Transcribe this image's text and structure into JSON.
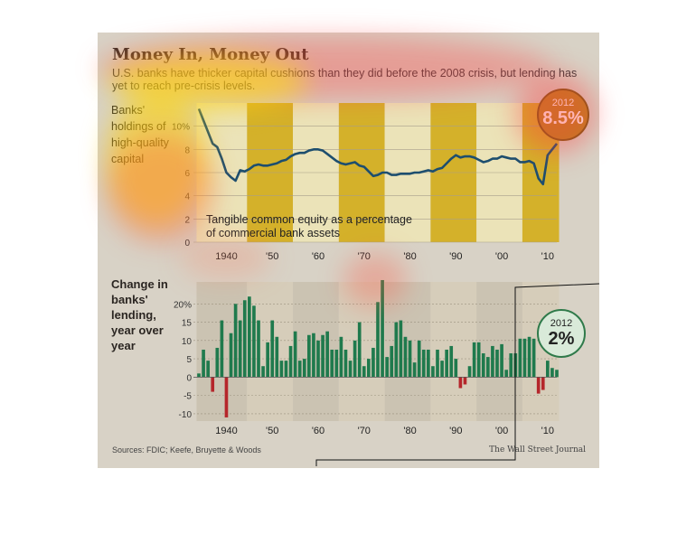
{
  "header": {
    "title": "Money In, Money Out",
    "subtitle": "U.S. banks have thicker capital cushions than they did before the 2008 crisis, but lending has yet to reach pre-crisis levels."
  },
  "top_chart": {
    "side_label": "Banks' holdings of high-quality capital",
    "note_line1": "Tangible common equity as a percentage",
    "note_line2": "of commercial bank assets",
    "callout_year": "2012",
    "callout_value": "8.5%"
  },
  "bottom_chart": {
    "side_label": "Change in banks' lending, year over year",
    "callout_year": "2012",
    "callout_value": "2%"
  },
  "x_ticks": [
    "1940",
    "'50",
    "'60",
    "'70",
    "'80",
    "'90",
    "'00",
    "'10"
  ],
  "footer": {
    "source": "Sources: FDIC; Keefe, Bruyette & Woods",
    "credit": "The Wall Street Journal"
  },
  "colors": {
    "panel_bg": "#d8d2c6",
    "band_gold": "#d4b12a",
    "band_light": "#ebe3b8",
    "line": "#1d4e6e",
    "bar_positive": "#1f7a4d",
    "bar_negative": "#b5262b",
    "callout_gold": "#b8861f",
    "callout_green": "#2f7a4a"
  },
  "chart_data": [
    {
      "type": "line",
      "x": [
        1934,
        1935,
        1936,
        1937,
        1938,
        1939,
        1940,
        1941,
        1942,
        1943,
        1944,
        1945,
        1946,
        1947,
        1948,
        1949,
        1950,
        1951,
        1952,
        1953,
        1954,
        1955,
        1956,
        1957,
        1958,
        1959,
        1960,
        1961,
        1962,
        1963,
        1964,
        1965,
        1966,
        1967,
        1968,
        1969,
        1970,
        1971,
        1972,
        1973,
        1974,
        1975,
        1976,
        1977,
        1978,
        1979,
        1980,
        1981,
        1982,
        1983,
        1984,
        1985,
        1986,
        1987,
        1988,
        1989,
        1990,
        1991,
        1992,
        1993,
        1994,
        1995,
        1996,
        1997,
        1998,
        1999,
        2000,
        2001,
        2002,
        2003,
        2004,
        2005,
        2006,
        2007,
        2008,
        2009,
        2010,
        2011,
        2012
      ],
      "series": [
        {
          "values": [
            11.5,
            10.5,
            9.5,
            8.5,
            8.2,
            7.2,
            6.0,
            5.6,
            5.3,
            6.2,
            6.1,
            6.3,
            6.6,
            6.7,
            6.6,
            6.6,
            6.7,
            6.8,
            7.0,
            7.1,
            7.4,
            7.6,
            7.7,
            7.7,
            7.9,
            8.0,
            8.0,
            7.9,
            7.6,
            7.3,
            7.0,
            6.8,
            6.7,
            6.8,
            6.9,
            6.6,
            6.5,
            6.1,
            5.7,
            5.8,
            6.0,
            6.0,
            5.8,
            5.8,
            5.9,
            5.9,
            5.9,
            6.0,
            6.0,
            6.1,
            6.2,
            6.1,
            6.3,
            6.4,
            6.8,
            7.2,
            7.5,
            7.3,
            7.4,
            7.4,
            7.3,
            7.1,
            6.9,
            7.0,
            7.2,
            7.2,
            7.4,
            7.3,
            7.2,
            7.2,
            6.9,
            6.9,
            7.0,
            6.8,
            5.5,
            5.0,
            7.5,
            8.0,
            8.5
          ]
        }
      ],
      "ylim": [
        0,
        12
      ],
      "y_ticks": [
        "0",
        "2",
        "4",
        "6",
        "8",
        "10%"
      ]
    },
    {
      "type": "bar",
      "x": [
        1934,
        1935,
        1936,
        1937,
        1938,
        1939,
        1940,
        1941,
        1942,
        1943,
        1944,
        1945,
        1946,
        1947,
        1948,
        1949,
        1950,
        1951,
        1952,
        1953,
        1954,
        1955,
        1956,
        1957,
        1958,
        1959,
        1960,
        1961,
        1962,
        1963,
        1964,
        1965,
        1966,
        1967,
        1968,
        1969,
        1970,
        1971,
        1972,
        1973,
        1974,
        1975,
        1976,
        1977,
        1978,
        1979,
        1980,
        1981,
        1982,
        1983,
        1984,
        1985,
        1986,
        1987,
        1988,
        1989,
        1990,
        1991,
        1992,
        1993,
        1994,
        1995,
        1996,
        1997,
        1998,
        1999,
        2000,
        2001,
        2002,
        2003,
        2004,
        2005,
        2006,
        2007,
        2008,
        2009,
        2010,
        2011,
        2012
      ],
      "values": [
        1,
        7.5,
        4.5,
        -4,
        8,
        15.5,
        -11,
        12,
        20,
        15.5,
        21,
        22,
        19.5,
        15.5,
        3,
        9.5,
        15.5,
        11,
        4.5,
        4.5,
        8.5,
        12.5,
        4.5,
        5,
        11.5,
        12,
        10,
        11.5,
        12.5,
        7.5,
        7.5,
        11,
        7.5,
        4.5,
        10,
        15,
        3,
        5,
        8,
        20.5,
        26.5,
        5.5,
        8.5,
        15,
        15.5,
        11,
        10,
        4,
        10,
        7.5,
        7.5,
        3,
        7.5,
        4.5,
        7.5,
        8.5,
        5,
        -3,
        -2,
        3,
        9.5,
        9.5,
        6.5,
        5.5,
        8.5,
        7.5,
        9,
        2,
        6.5,
        6.5,
        10.5,
        10.5,
        11,
        10.5,
        -4.5,
        -3.5,
        4.5,
        2.5,
        2
      ],
      "ylim": [
        -12,
        26
      ],
      "y_ticks": [
        "-10",
        "-5",
        "0",
        "5",
        "10",
        "15",
        "20%"
      ]
    }
  ]
}
